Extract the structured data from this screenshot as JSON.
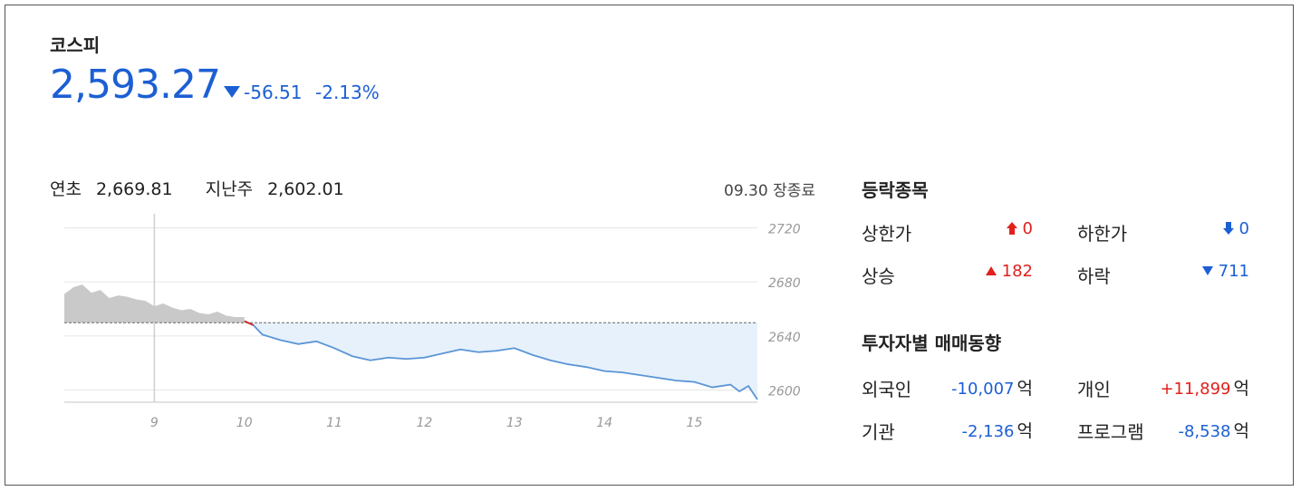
{
  "index": {
    "name": "코스피",
    "price": "2,593.27",
    "change": "-56.51",
    "change_pct": "-2.13%",
    "direction": "down"
  },
  "summary": {
    "year_open_label": "연초",
    "year_open_value": "2,669.81",
    "last_week_label": "지난주",
    "last_week_value": "2,602.01",
    "status": "09.30 장종료"
  },
  "advance_decline": {
    "title": "등락종목",
    "upper_limit_label": "상한가",
    "upper_limit_value": "0",
    "lower_limit_label": "하한가",
    "lower_limit_value": "0",
    "rise_label": "상승",
    "rise_value": "182",
    "fall_label": "하락",
    "fall_value": "711"
  },
  "investors": {
    "title": "투자자별 매매동향",
    "unit": "억",
    "foreign_label": "외국인",
    "foreign_value": "-10,007",
    "individual_label": "개인",
    "individual_value": "+11,899",
    "institution_label": "기관",
    "institution_value": "-2,136",
    "program_label": "프로그램",
    "program_value": "-8,538"
  },
  "colors": {
    "up": "#e0211d",
    "down": "#1c5fd4",
    "prev_area": "#c9c9c9",
    "today_area": "#e6f1fb",
    "today_line": "#5b95d6"
  },
  "chart_data": {
    "type": "area",
    "y_ticks": [
      "2720",
      "2680",
      "2640",
      "2600"
    ],
    "ylim": [
      2593,
      2727
    ],
    "x_ticks": [
      "9",
      "10",
      "11",
      "12",
      "13",
      "14",
      "15"
    ],
    "xlim": [
      8.0,
      15.7
    ],
    "reference_value": 2649.78,
    "grid": true,
    "series": [
      {
        "x": [
          8.0,
          8.1,
          8.2,
          8.3,
          8.4,
          8.5,
          8.6,
          8.7,
          8.8,
          8.9,
          9.0,
          9.1,
          9.2,
          9.3,
          9.4,
          9.5,
          9.6,
          9.7,
          9.8,
          9.9,
          10.0
        ],
        "y": [
          2671,
          2676,
          2678,
          2672,
          2674,
          2668,
          2670,
          2669,
          2667,
          2666,
          2662,
          2664,
          2661,
          2659,
          2660,
          2657,
          2656,
          2658,
          2655,
          2654,
          2654
        ]
      },
      {
        "x": [
          10.0,
          10.1,
          10.2,
          10.4,
          10.6,
          10.8,
          11.0,
          11.2,
          11.4,
          11.6,
          11.8,
          12.0,
          12.2,
          12.4,
          12.6,
          12.8,
          13.0,
          13.2,
          13.4,
          13.6,
          13.8,
          14.0,
          14.2,
          14.4,
          14.6,
          14.8,
          15.0,
          15.2,
          15.4,
          15.5,
          15.6,
          15.7
        ],
        "y": [
          2651,
          2648,
          2641,
          2637,
          2634,
          2636,
          2631,
          2625,
          2622,
          2624,
          2623,
          2624,
          2627,
          2630,
          2628,
          2629,
          2631,
          2626,
          2622,
          2619,
          2617,
          2614,
          2613,
          2611,
          2609,
          2607,
          2606,
          2602,
          2604,
          2599,
          2603,
          2593
        ]
      }
    ]
  }
}
